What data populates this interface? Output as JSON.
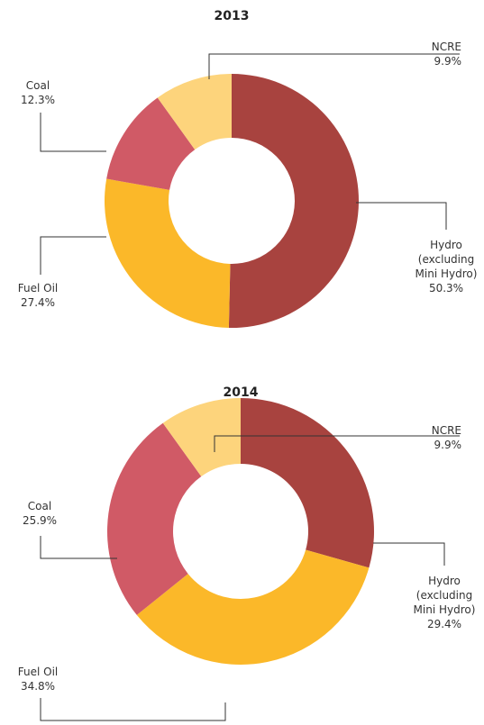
{
  "chart_data": [
    {
      "type": "donut",
      "title": "2013",
      "categories": [
        "Hydro (excluding Mini Hydro)",
        "Fuel Oil",
        "Coal",
        "NCRE"
      ],
      "values": [
        50.3,
        27.4,
        12.3,
        9.9
      ],
      "value_labels": [
        "50.3%",
        "27.4%",
        "12.3%",
        "9.9%"
      ],
      "colors": [
        "#a8433f",
        "#fbb829",
        "#d05a66",
        "#fdd47c"
      ]
    },
    {
      "type": "donut",
      "title": "2014",
      "categories": [
        "Hydro (excluding Mini Hydro)",
        "Fuel Oil",
        "Coal",
        "NCRE"
      ],
      "values": [
        29.4,
        34.8,
        25.9,
        9.9
      ],
      "value_labels": [
        "29.4%",
        "34.8%",
        "25.9%",
        "9.9%"
      ],
      "colors": [
        "#a8433f",
        "#fbb829",
        "#d05a66",
        "#fdd47c"
      ]
    }
  ]
}
